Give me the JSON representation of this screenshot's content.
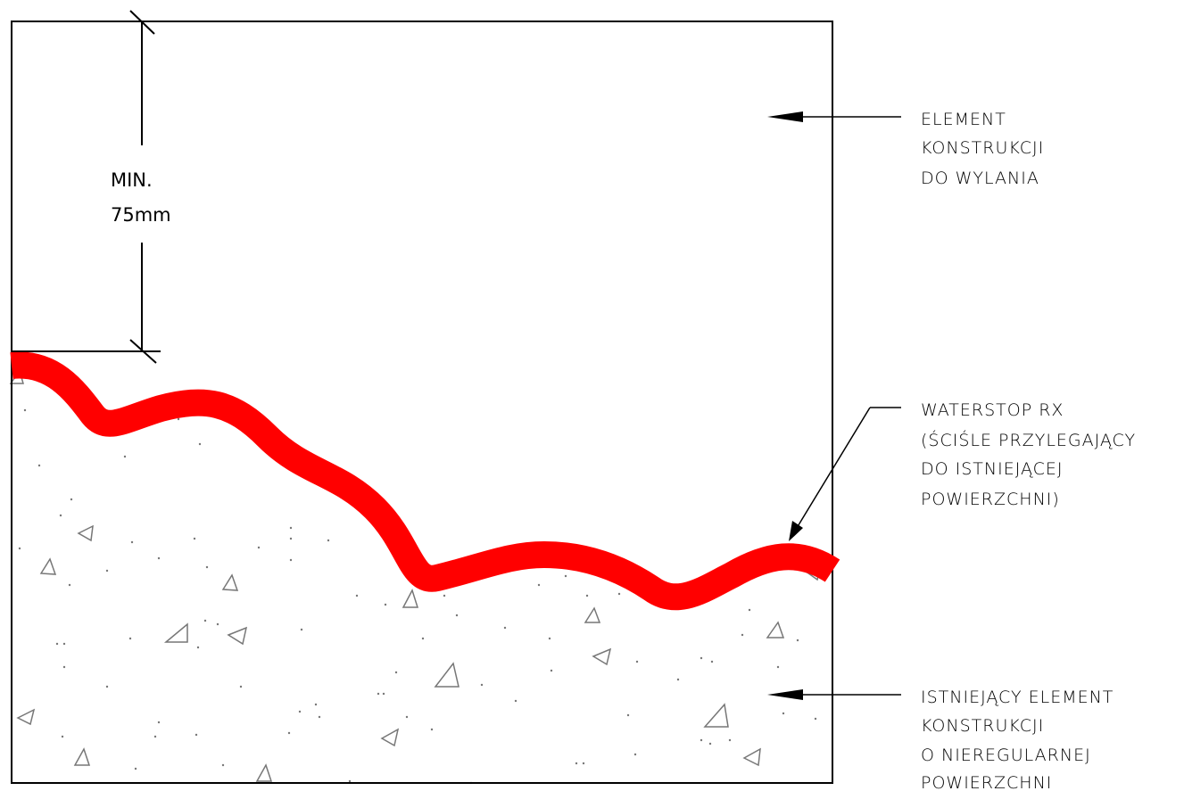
{
  "dimension": {
    "line1": "MIN.",
    "line2": "75mm"
  },
  "labels": {
    "top": [
      "ELEMENT",
      "KONSTRUKCJI",
      "DO  WYLANIA"
    ],
    "waterstop": [
      "WATERSTOP  RX",
      "(ŚCIŚLE  PRZYLEGAJĄCY",
      "DO  ISTNIEJĄCEJ",
      "POWIERZCHNI)"
    ],
    "bottom": [
      "ISTNIEJĄCY  ELEMENT",
      "KONSTRUKCJI",
      "O  NIEREGULARNEJ",
      "POWIERZCHNI"
    ]
  },
  "colors": {
    "waterstop": "#ff0000",
    "line": "#000000",
    "aggregate": "#777777"
  }
}
